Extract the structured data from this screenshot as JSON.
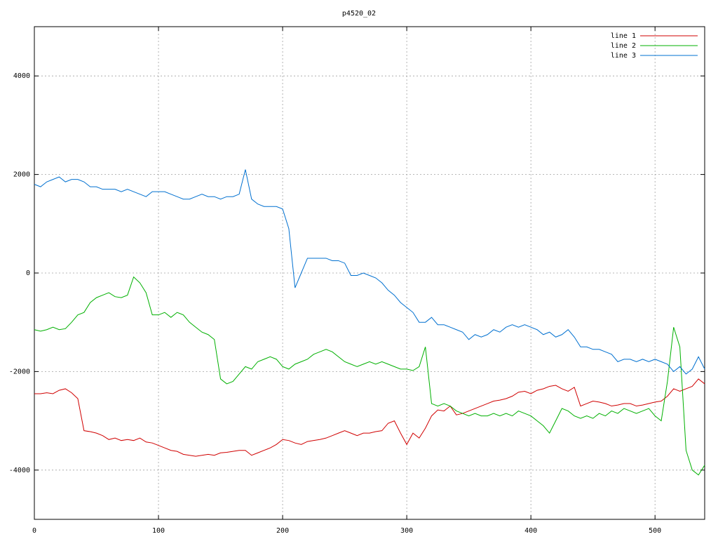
{
  "chart_data": {
    "type": "line",
    "title": "p4520_02",
    "x": [
      0,
      5,
      10,
      15,
      20,
      25,
      30,
      35,
      40,
      45,
      50,
      55,
      60,
      65,
      70,
      75,
      80,
      85,
      90,
      95,
      100,
      105,
      110,
      115,
      120,
      125,
      130,
      135,
      140,
      145,
      150,
      155,
      160,
      165,
      170,
      175,
      180,
      185,
      190,
      195,
      200,
      205,
      210,
      215,
      220,
      225,
      230,
      235,
      240,
      245,
      250,
      255,
      260,
      265,
      270,
      275,
      280,
      285,
      290,
      295,
      300,
      305,
      310,
      315,
      320,
      325,
      330,
      335,
      340,
      345,
      350,
      355,
      360,
      365,
      370,
      375,
      380,
      385,
      390,
      395,
      400,
      405,
      410,
      415,
      420,
      425,
      430,
      435,
      440,
      445,
      450,
      455,
      460,
      465,
      470,
      475,
      480,
      485,
      490,
      495,
      500,
      505,
      510,
      515,
      520,
      525,
      530,
      535,
      540
    ],
    "series": [
      {
        "name": "line 1",
        "color": "#d00000",
        "values": [
          -2450,
          -2450,
          -2430,
          -2450,
          -2380,
          -2350,
          -2430,
          -2550,
          -3200,
          -3220,
          -3250,
          -3300,
          -3380,
          -3350,
          -3400,
          -3380,
          -3400,
          -3350,
          -3430,
          -3450,
          -3500,
          -3550,
          -3600,
          -3620,
          -3680,
          -3700,
          -3720,
          -3700,
          -3680,
          -3700,
          -3650,
          -3640,
          -3620,
          -3600,
          -3600,
          -3700,
          -3650,
          -3600,
          -3550,
          -3480,
          -3380,
          -3400,
          -3450,
          -3480,
          -3420,
          -3400,
          -3380,
          -3350,
          -3300,
          -3250,
          -3200,
          -3250,
          -3300,
          -3250,
          -3250,
          -3220,
          -3200,
          -3050,
          -3000,
          -3250,
          -3480,
          -3250,
          -3350,
          -3150,
          -2900,
          -2780,
          -2800,
          -2700,
          -2880,
          -2850,
          -2800,
          -2750,
          -2700,
          -2650,
          -2600,
          -2580,
          -2550,
          -2500,
          -2420,
          -2400,
          -2450,
          -2380,
          -2350,
          -2300,
          -2280,
          -2350,
          -2400,
          -2320,
          -2700,
          -2650,
          -2600,
          -2620,
          -2650,
          -2700,
          -2680,
          -2650,
          -2650,
          -2700,
          -2680,
          -2650,
          -2620,
          -2600,
          -2500,
          -2350,
          -2400,
          -2350,
          -2300,
          -2150,
          -2250
        ]
      },
      {
        "name": "line 2",
        "color": "#00b000",
        "values": [
          -1150,
          -1180,
          -1150,
          -1100,
          -1150,
          -1130,
          -1000,
          -850,
          -800,
          -600,
          -500,
          -450,
          -400,
          -480,
          -500,
          -450,
          -80,
          -200,
          -400,
          -850,
          -850,
          -800,
          -900,
          -800,
          -850,
          -1000,
          -1100,
          -1200,
          -1250,
          -1350,
          -2150,
          -2250,
          -2200,
          -2050,
          -1900,
          -1950,
          -1800,
          -1750,
          -1700,
          -1750,
          -1900,
          -1950,
          -1850,
          -1800,
          -1750,
          -1650,
          -1600,
          -1550,
          -1600,
          -1700,
          -1800,
          -1850,
          -1900,
          -1850,
          -1800,
          -1850,
          -1800,
          -1850,
          -1900,
          -1950,
          -1950,
          -1980,
          -1900,
          -1500,
          -2650,
          -2700,
          -2650,
          -2700,
          -2800,
          -2850,
          -2900,
          -2850,
          -2900,
          -2900,
          -2850,
          -2900,
          -2850,
          -2900,
          -2800,
          -2850,
          -2900,
          -3000,
          -3100,
          -3250,
          -3000,
          -2750,
          -2800,
          -2900,
          -2950,
          -2900,
          -2950,
          -2850,
          -2900,
          -2800,
          -2850,
          -2750,
          -2800,
          -2850,
          -2800,
          -2750,
          -2900,
          -3000,
          -2200,
          -1100,
          -1500,
          -3600,
          -4000,
          -4100,
          -3900
        ]
      },
      {
        "name": "line 3",
        "color": "#0070d0",
        "values": [
          1800,
          1750,
          1850,
          1900,
          1950,
          1850,
          1900,
          1900,
          1850,
          1750,
          1750,
          1700,
          1700,
          1700,
          1650,
          1700,
          1650,
          1600,
          1550,
          1650,
          1650,
          1650,
          1600,
          1550,
          1500,
          1500,
          1550,
          1600,
          1550,
          1550,
          1500,
          1550,
          1550,
          1600,
          2100,
          1500,
          1400,
          1350,
          1350,
          1350,
          1300,
          900,
          -300,
          0,
          300,
          300,
          300,
          300,
          250,
          250,
          200,
          -50,
          -50,
          0,
          -50,
          -100,
          -200,
          -350,
          -450,
          -600,
          -700,
          -800,
          -1000,
          -1000,
          -900,
          -1050,
          -1050,
          -1100,
          -1150,
          -1200,
          -1350,
          -1250,
          -1300,
          -1250,
          -1150,
          -1200,
          -1100,
          -1050,
          -1100,
          -1050,
          -1100,
          -1150,
          -1250,
          -1200,
          -1300,
          -1250,
          -1150,
          -1300,
          -1500,
          -1500,
          -1550,
          -1550,
          -1600,
          -1650,
          -1800,
          -1750,
          -1750,
          -1800,
          -1750,
          -1800,
          -1750,
          -1800,
          -1850,
          -2000,
          -1900,
          -2050,
          -1950,
          -1700,
          -1950
        ]
      }
    ],
    "xlim": [
      0,
      540
    ],
    "xticks": [
      0,
      100,
      200,
      300,
      400,
      500
    ],
    "ylim": [
      -5000,
      5000
    ],
    "yticks": [
      -4000,
      -2000,
      0,
      2000,
      4000
    ],
    "grid": true,
    "legend": "upper right"
  }
}
